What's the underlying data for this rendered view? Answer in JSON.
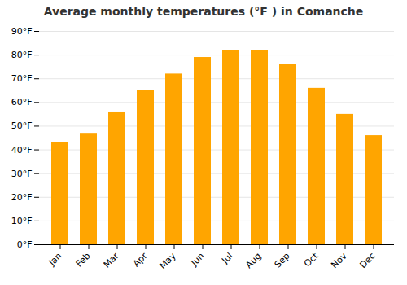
{
  "chart_data": {
    "type": "bar",
    "title": "Average monthly temperatures (°F ) in Comanche",
    "categories": [
      "Jan",
      "Feb",
      "Mar",
      "Apr",
      "May",
      "Jun",
      "Jul",
      "Aug",
      "Sep",
      "Oct",
      "Nov",
      "Dec"
    ],
    "values": [
      43,
      47,
      56,
      65,
      72,
      79,
      82,
      82,
      76,
      66,
      55,
      46
    ],
    "color": "#FFA500",
    "ylim": [
      0,
      90
    ],
    "yticks": [
      {
        "value": 0,
        "label": "0°F"
      },
      {
        "value": 10,
        "label": "10°F"
      },
      {
        "value": 20,
        "label": "20°F"
      },
      {
        "value": 30,
        "label": "30°F"
      },
      {
        "value": 40,
        "label": "40°F"
      },
      {
        "value": 50,
        "label": "50°F"
      },
      {
        "value": 60,
        "label": "60°F"
      },
      {
        "value": 70,
        "label": "70°F"
      },
      {
        "value": 80,
        "label": "80°F"
      },
      {
        "value": 90,
        "label": "90°F"
      }
    ],
    "grid": true
  }
}
